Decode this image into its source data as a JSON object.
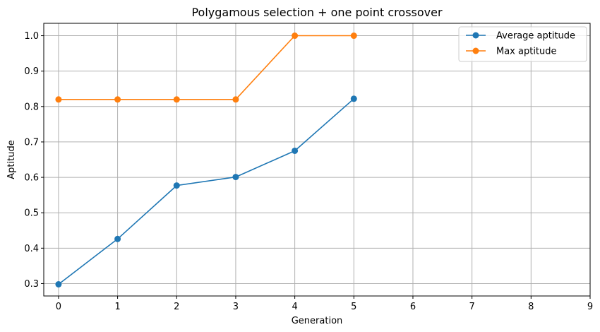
{
  "chart_data": {
    "type": "line",
    "title": "Polygamous selection + one point crossover",
    "xlabel": "Generation",
    "ylabel": "Aptitude",
    "xlim": [
      -0.25,
      9
    ],
    "ylim": [
      0.265,
      1.035
    ],
    "xticks": [
      0,
      1,
      2,
      3,
      4,
      5,
      6,
      7,
      8,
      9
    ],
    "yticks": [
      0.3,
      0.4,
      0.5,
      0.6,
      0.7,
      0.8,
      0.9,
      1.0
    ],
    "ytick_labels": [
      "0.3",
      "0.4",
      "0.5",
      "0.6",
      "0.7",
      "0.8",
      "0.9",
      "1.0"
    ],
    "grid": true,
    "legend_position": "top-right",
    "series": [
      {
        "name": "Average aptitude",
        "color": "#1f77b4",
        "marker": "circle",
        "x": [
          0,
          1,
          2,
          3,
          4,
          5
        ],
        "y": [
          0.298,
          0.426,
          0.577,
          0.601,
          0.675,
          0.822
        ]
      },
      {
        "name": "Max aptitude",
        "color": "#ff7f0e",
        "marker": "circle",
        "x": [
          0,
          1,
          2,
          3,
          4,
          5
        ],
        "y": [
          0.82,
          0.82,
          0.82,
          0.82,
          1.0,
          1.0
        ]
      }
    ]
  }
}
